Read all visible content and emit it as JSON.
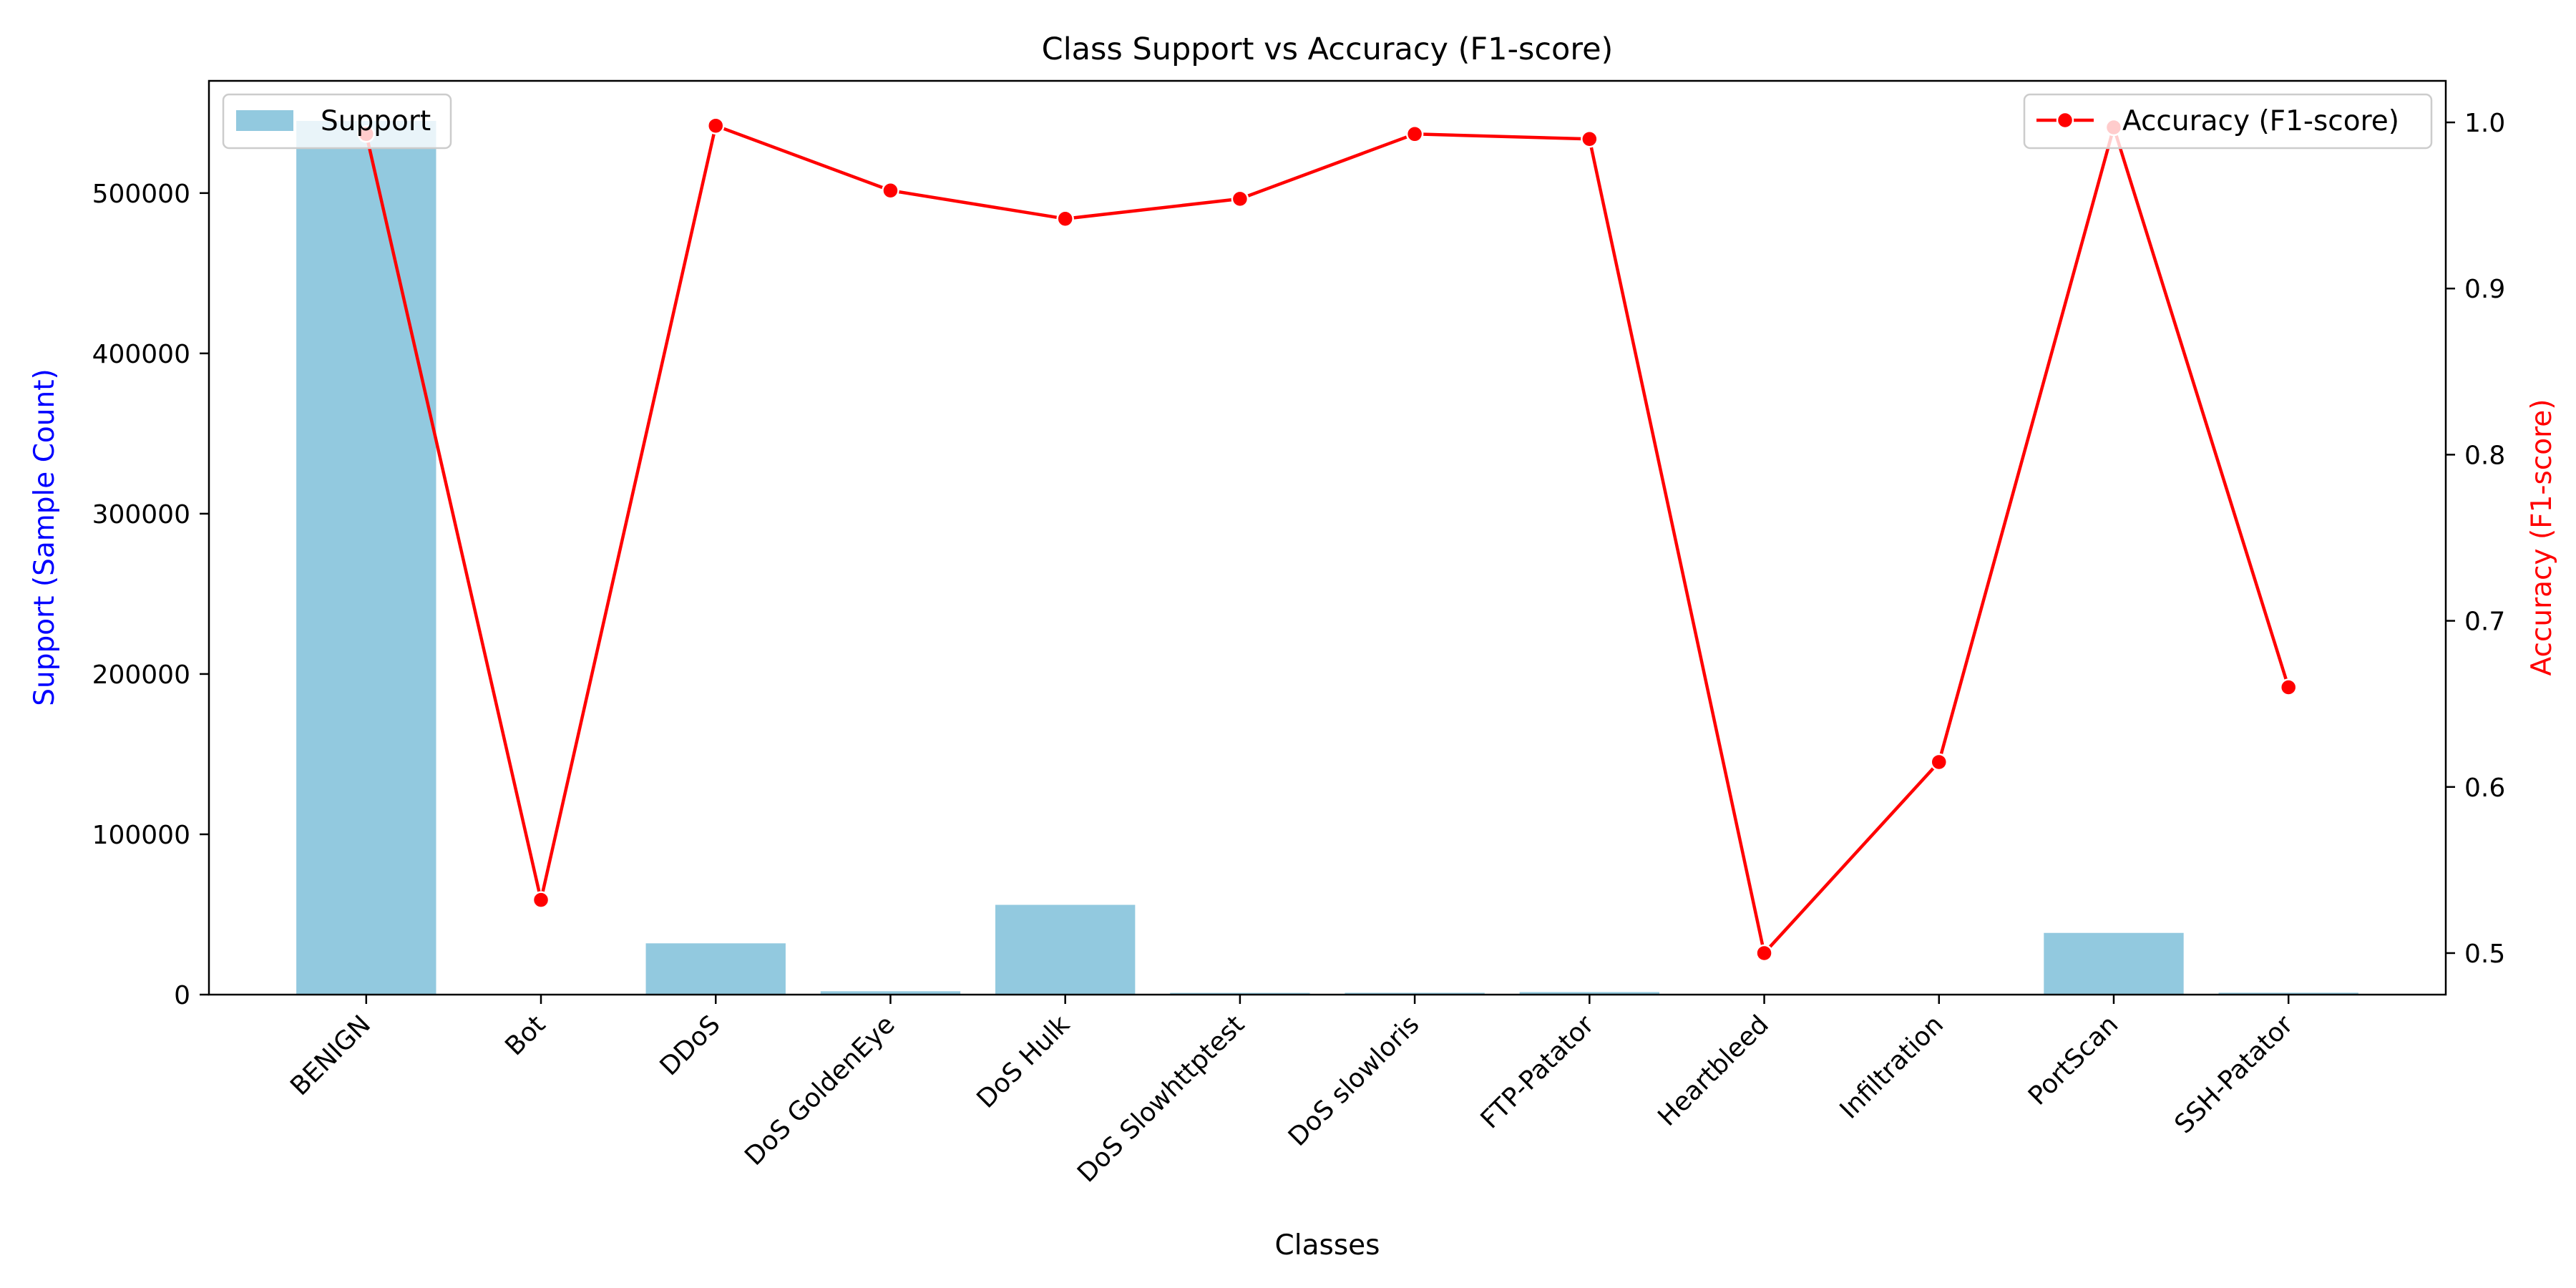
{
  "chart_data": {
    "type": "bar",
    "title": "Class Support vs Accuracy (F1-score)",
    "xlabel": "Classes",
    "ylabel_left": "Support (Sample Count)",
    "ylabel_right": "Accuracy (F1-score)",
    "categories": [
      "BENIGN",
      "Bot",
      "DDoS",
      "DoS GoldenEye",
      "DoS Hulk",
      "DoS Slowhttptest",
      "DoS slowloris",
      "FTP-Patator",
      "Heartbleed",
      "Infiltration",
      "PortScan",
      "SSH-Patator"
    ],
    "ylim_left": [
      0,
      570000
    ],
    "left_ticks": [
      0,
      100000,
      200000,
      300000,
      400000,
      500000
    ],
    "ylim_right": [
      0.475,
      1.025
    ],
    "right_ticks": [
      0.5,
      0.6,
      0.7,
      0.8,
      0.9,
      1.0
    ],
    "series": [
      {
        "name": "Support",
        "type": "bar",
        "axis": "left",
        "color": "#92c9df",
        "values": [
          545000,
          390,
          32000,
          2100,
          56000,
          1100,
          1150,
          1600,
          2,
          7,
          38500,
          1200
        ]
      },
      {
        "name": "Accuracy (F1-score)",
        "type": "line",
        "axis": "right",
        "color": "#ff0000",
        "values": [
          0.993,
          0.532,
          0.998,
          0.959,
          0.942,
          0.954,
          0.993,
          0.99,
          0.5,
          0.615,
          0.997,
          0.66
        ]
      }
    ],
    "grid": false,
    "legend_left": "top-left",
    "legend_right": "top-right"
  }
}
